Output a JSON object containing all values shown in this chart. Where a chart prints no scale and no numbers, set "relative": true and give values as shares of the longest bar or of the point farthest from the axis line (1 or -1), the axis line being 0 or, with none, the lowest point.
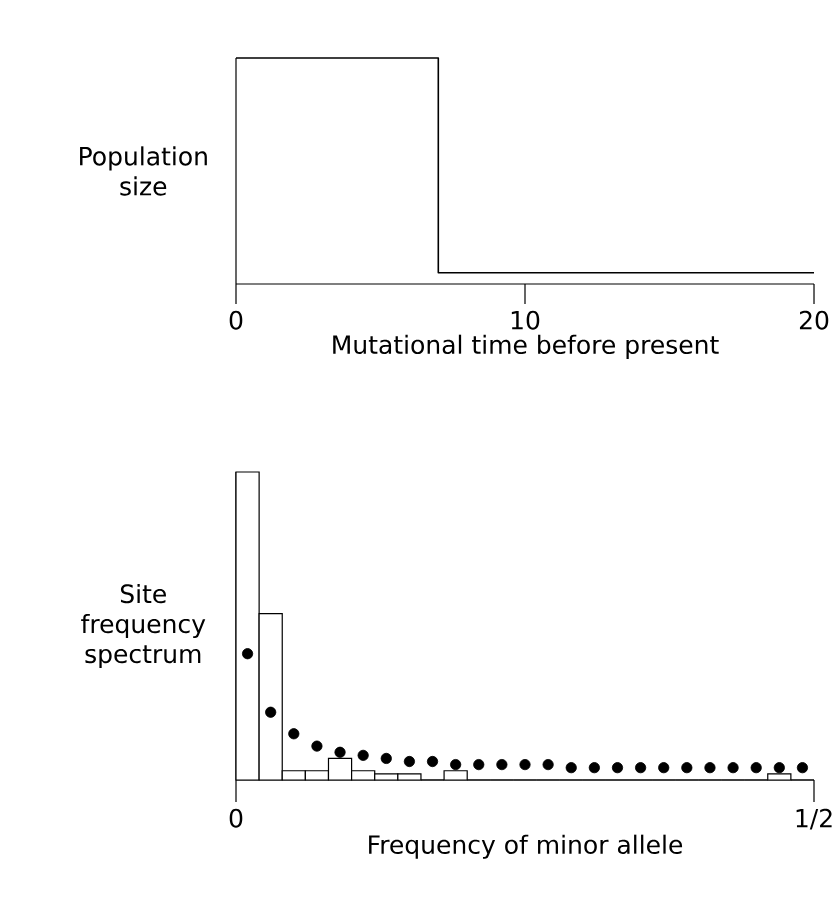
{
  "chart_data": [
    {
      "type": "step",
      "x": [
        0,
        7,
        20
      ],
      "values": [
        1,
        0.05,
        0.05
      ],
      "color": "#000000",
      "relative": true,
      "xlim": [
        0,
        20
      ],
      "xticks": [
        0,
        10,
        20
      ],
      "xlabel": "Mutational time before present",
      "ylabel": "Population size",
      "tick_labels": "x"
    },
    {
      "type": "histogram",
      "bins": [
        0,
        0.02,
        0.04,
        0.06,
        0.08,
        0.1,
        0.12,
        0.14,
        0.16,
        0.18,
        0.2,
        0.22,
        0.24,
        0.26,
        0.28,
        0.3,
        0.32,
        0.34,
        0.36,
        0.38,
        0.4,
        0.42,
        0.44,
        0.46,
        0.48,
        0.5
      ],
      "relative": true,
      "xlim": [
        0,
        0.5
      ],
      "xticks": [
        0,
        {
          "value": 0.5,
          "label": "1/2"
        }
      ],
      "xlabel": "Frequency of minor allele",
      "ylabel": "Site frequency spectrum",
      "tick_labels": "x",
      "series": [
        {
          "type": "histogram",
          "color": "#ffffff",
          "values": [
            1,
            0.54,
            0.03,
            0.03,
            0.07,
            0.03,
            0.02,
            0.02,
            0,
            0.03,
            0,
            0,
            0,
            0,
            0,
            0,
            0,
            0,
            0,
            0,
            0,
            0,
            0,
            0.02,
            0
          ]
        },
        {
          "type": "scatter",
          "marker": "circle",
          "color": "#000000",
          "x": [
            0.01,
            0.03,
            0.05,
            0.07,
            0.09,
            0.11,
            0.13,
            0.15,
            0.17,
            0.19,
            0.21,
            0.23,
            0.25,
            0.27,
            0.29,
            0.31,
            0.33,
            0.35,
            0.37,
            0.39,
            0.41,
            0.43,
            0.45,
            0.47,
            0.49
          ],
          "values": [
            0.41,
            0.22,
            0.15,
            0.11,
            0.09,
            0.08,
            0.07,
            0.06,
            0.06,
            0.05,
            0.05,
            0.05,
            0.05,
            0.05,
            0.04,
            0.04,
            0.04,
            0.04,
            0.04,
            0.04,
            0.04,
            0.04,
            0.04,
            0.04,
            0.04
          ]
        }
      ]
    }
  ]
}
